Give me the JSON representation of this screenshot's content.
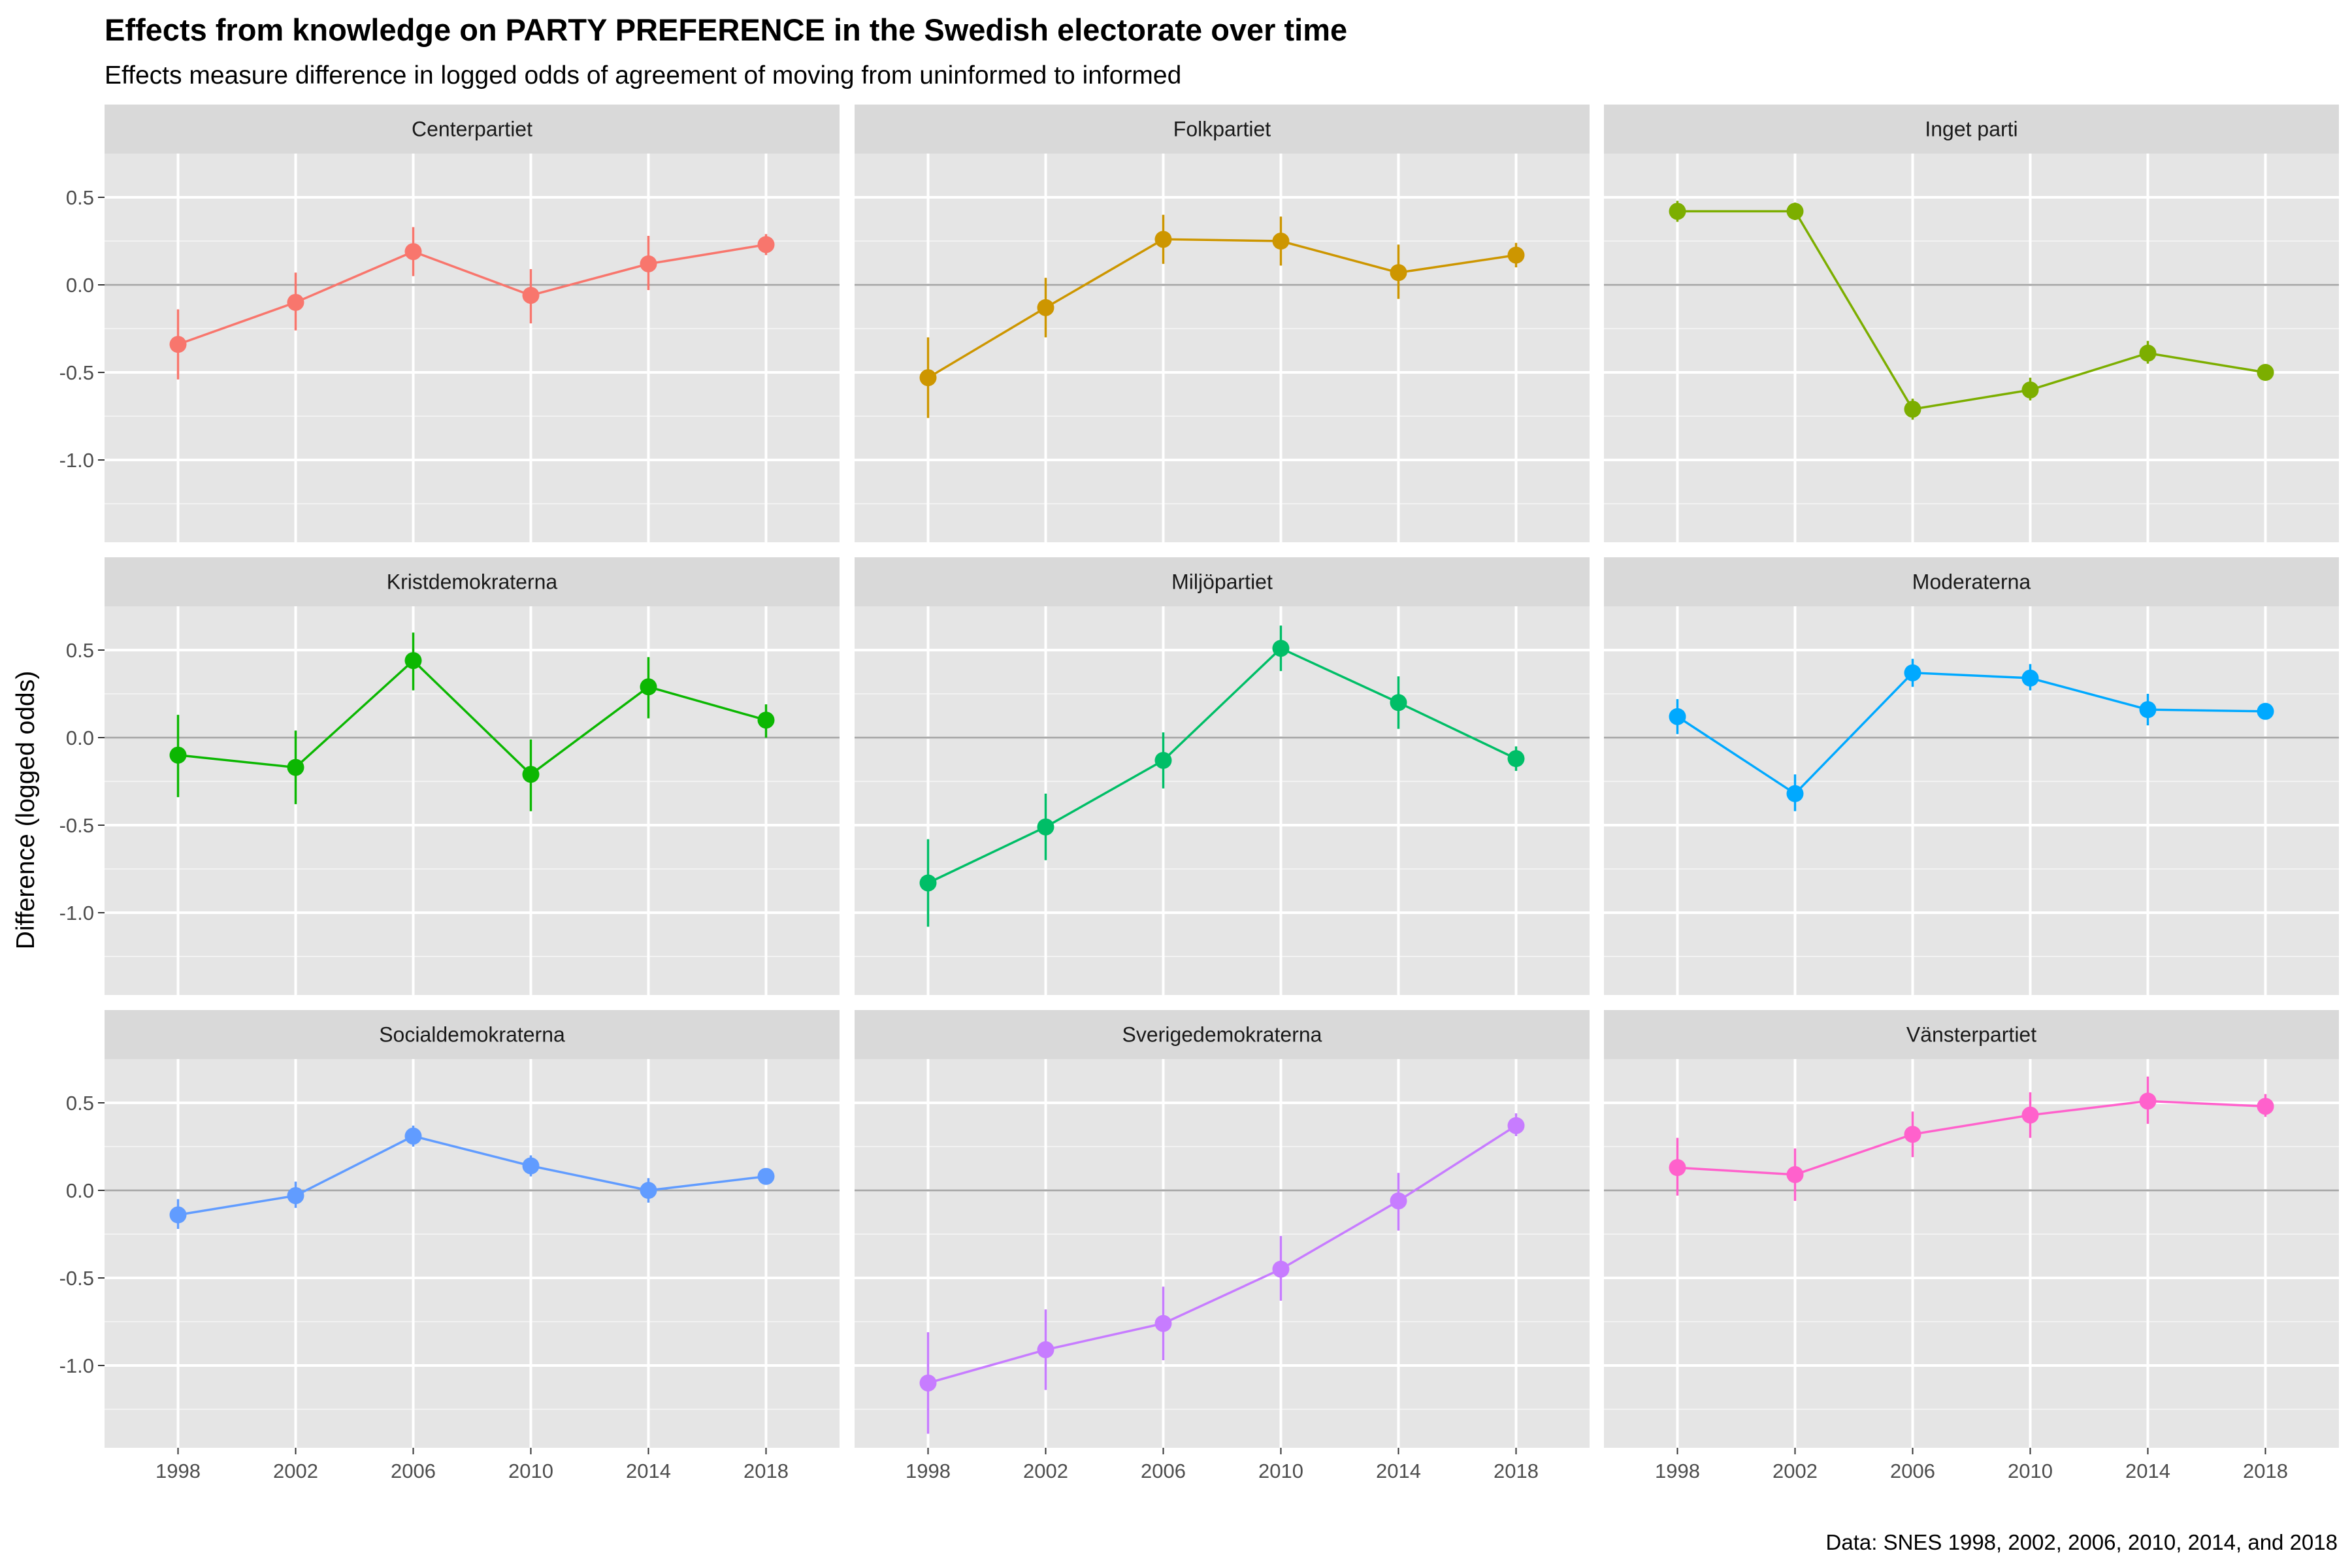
{
  "title": "Effects from knowledge on PARTY PREFERENCE in the Swedish electorate over time",
  "subtitle": "Effects measure difference in logged odds of agreement of moving from uninformed to informed",
  "caption": "Data: SNES 1998, 2002, 2006, 2010, 2014, and 2018",
  "chart_data": {
    "type": "line",
    "layout": "facet grid 3x3, shared axes, points with error bars connected by lines",
    "x": [
      1998,
      2002,
      2006,
      2010,
      2014,
      2018
    ],
    "x_tick_labels": [
      "1998",
      "2002",
      "2006",
      "2010",
      "2014",
      "2018"
    ],
    "xlim": [
      1995.5,
      2020.5
    ],
    "ylabel": "Difference (logged odds)",
    "xlabel": "",
    "ylim": [
      -1.47,
      0.75
    ],
    "y_ticks": [
      0.5,
      0.0,
      -0.5,
      -1.0
    ],
    "y_tick_labels": [
      "0.5",
      "0.0",
      "-0.5",
      "-1.0"
    ],
    "reference_line": 0,
    "grid": true,
    "legend": "none",
    "background": "#e5e5e5",
    "strip_background": "#d9d9d9",
    "series": [
      {
        "name": "Centerpartiet",
        "color": "#F8766D",
        "values": [
          -0.34,
          -0.1,
          0.19,
          -0.06,
          0.12,
          0.23
        ],
        "lower": [
          -0.54,
          -0.26,
          0.05,
          -0.22,
          -0.03,
          0.17
        ],
        "upper": [
          -0.14,
          0.07,
          0.33,
          0.09,
          0.28,
          0.29
        ]
      },
      {
        "name": "Folkpartiet",
        "color": "#CD9600",
        "values": [
          -0.53,
          -0.13,
          0.26,
          0.25,
          0.07,
          0.17
        ],
        "lower": [
          -0.76,
          -0.3,
          0.12,
          0.11,
          -0.08,
          0.1
        ],
        "upper": [
          -0.3,
          0.04,
          0.4,
          0.39,
          0.23,
          0.24
        ]
      },
      {
        "name": "Inget parti",
        "color": "#7CAE00",
        "values": [
          0.42,
          0.42,
          -0.71,
          -0.6,
          -0.39,
          -0.5
        ],
        "lower": [
          0.36,
          0.37,
          -0.77,
          -0.66,
          -0.45,
          -0.53
        ],
        "upper": [
          0.48,
          0.47,
          -0.65,
          -0.53,
          -0.32,
          -0.47
        ]
      },
      {
        "name": "Kristdemokraterna",
        "color": "#0CB702",
        "values": [
          -0.1,
          -0.17,
          0.44,
          -0.21,
          0.29,
          0.1
        ],
        "lower": [
          -0.34,
          -0.38,
          0.27,
          -0.42,
          0.11,
          0.0
        ],
        "upper": [
          0.13,
          0.04,
          0.6,
          -0.01,
          0.46,
          0.19
        ]
      },
      {
        "name": "Miljöpartiet",
        "color": "#00BE67",
        "values": [
          -0.83,
          -0.51,
          -0.13,
          0.51,
          0.2,
          -0.12
        ],
        "lower": [
          -1.08,
          -0.7,
          -0.29,
          0.38,
          0.05,
          -0.19
        ],
        "upper": [
          -0.58,
          -0.32,
          0.03,
          0.64,
          0.35,
          -0.05
        ]
      },
      {
        "name": "Moderaterna",
        "color": "#00A9FF",
        "values": [
          0.12,
          -0.32,
          0.37,
          0.34,
          0.16,
          0.15
        ],
        "lower": [
          0.02,
          -0.42,
          0.29,
          0.27,
          0.07,
          0.11
        ],
        "upper": [
          0.22,
          -0.21,
          0.45,
          0.42,
          0.25,
          0.19
        ]
      },
      {
        "name": "Socialdemokraterna",
        "color": "#619CFF",
        "values": [
          -0.14,
          -0.03,
          0.31,
          0.14,
          0.0,
          0.08
        ],
        "lower": [
          -0.22,
          -0.1,
          0.25,
          0.08,
          -0.07,
          0.04
        ],
        "upper": [
          -0.05,
          0.05,
          0.37,
          0.2,
          0.07,
          0.12
        ]
      },
      {
        "name": "Sverigedemokraterna",
        "color": "#C77CFF",
        "values": [
          -1.1,
          -0.91,
          -0.76,
          -0.45,
          -0.06,
          0.37
        ],
        "lower": [
          -1.39,
          -1.14,
          -0.97,
          -0.63,
          -0.23,
          0.31
        ],
        "upper": [
          -0.81,
          -0.68,
          -0.55,
          -0.26,
          0.1,
          0.44
        ]
      },
      {
        "name": "Vänsterpartiet",
        "color": "#FF61CC",
        "values": [
          0.13,
          0.09,
          0.32,
          0.43,
          0.51,
          0.48
        ],
        "lower": [
          -0.03,
          -0.06,
          0.19,
          0.3,
          0.38,
          0.42
        ],
        "upper": [
          0.3,
          0.24,
          0.45,
          0.56,
          0.65,
          0.55
        ]
      }
    ]
  }
}
